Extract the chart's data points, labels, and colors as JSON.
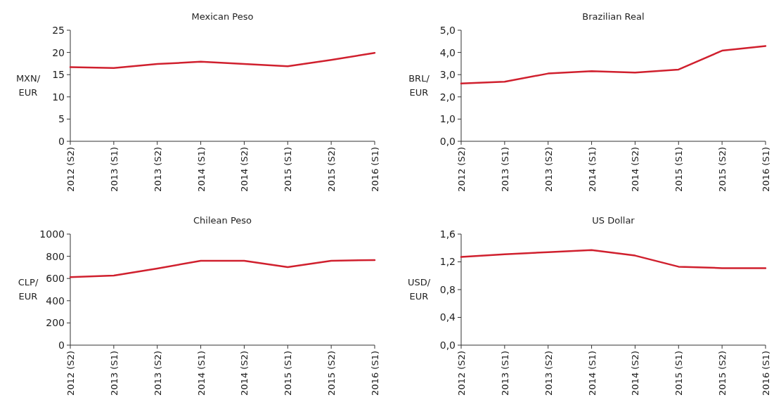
{
  "chart_data": [
    {
      "type": "line",
      "title": "Mexican Peso",
      "ylabel": "MXN/EUR",
      "categories": [
        "2012 (S2)",
        "2013 (S1)",
        "2013 (S2)",
        "2014 (S1)",
        "2014 (S2)",
        "2015 (S1)",
        "2015 (S2)",
        "2016 (S1)"
      ],
      "series": [
        {
          "color": "#d0202e",
          "values": [
            16.7,
            16.5,
            17.4,
            17.9,
            17.4,
            16.9,
            18.3,
            19.9
          ]
        }
      ],
      "ylim": [
        0,
        25
      ],
      "yticks": [
        0,
        5,
        10,
        15,
        20,
        25
      ]
    },
    {
      "type": "line",
      "title": "Brazilian Real",
      "ylabel": "BRL/EUR",
      "categories": [
        "2012 (S2)",
        "2013 (S1)",
        "2013 (S2)",
        "2014 (S1)",
        "2014 (S2)",
        "2015 (S1)",
        "2015 (S2)",
        "2016 (S1)"
      ],
      "series": [
        {
          "color": "#d0202e",
          "values": [
            2.6,
            2.68,
            3.05,
            3.16,
            3.09,
            3.23,
            4.08,
            4.29
          ]
        }
      ],
      "ylim": [
        0,
        5
      ],
      "yticks": [
        {
          "value": 0,
          "label": "0,0"
        },
        {
          "value": 1,
          "label": "1,0"
        },
        {
          "value": 2,
          "label": "2,0"
        },
        {
          "value": 3,
          "label": "3,0"
        },
        {
          "value": 4,
          "label": "4,0"
        },
        {
          "value": 5,
          "label": "5,0"
        }
      ]
    },
    {
      "type": "line",
      "title": "Chilean Peso",
      "ylabel": "CLP/EUR",
      "categories": [
        "2012 (S2)",
        "2013 (S1)",
        "2013 (S2)",
        "2014 (S1)",
        "2014 (S2)",
        "2015 (S1)",
        "2015 (S2)",
        "2016 (S1)"
      ],
      "series": [
        {
          "color": "#d0202e",
          "values": [
            612,
            626,
            690,
            760,
            760,
            703,
            760,
            766
          ]
        }
      ],
      "ylim": [
        0,
        1000
      ],
      "yticks": [
        0,
        200,
        400,
        600,
        800,
        1000
      ]
    },
    {
      "type": "line",
      "title": "US Dollar",
      "ylabel": "USD/EUR",
      "categories": [
        "2012 (S2)",
        "2013 (S1)",
        "2013 (S2)",
        "2014 (S1)",
        "2014 (S2)",
        "2015 (S1)",
        "2015 (S2)",
        "2016 (S1)"
      ],
      "series": [
        {
          "color": "#d0202e",
          "values": [
            1.27,
            1.31,
            1.34,
            1.37,
            1.29,
            1.13,
            1.11,
            1.11
          ]
        }
      ],
      "ylim": [
        0,
        1.6
      ],
      "yticks": [
        {
          "value": 0,
          "label": "0,0"
        },
        {
          "value": 0.4,
          "label": "0,4"
        },
        {
          "value": 0.8,
          "label": "0,8"
        },
        {
          "value": 1.2,
          "label": "1,2"
        },
        {
          "value": 1.6,
          "label": "1,6"
        }
      ]
    }
  ]
}
